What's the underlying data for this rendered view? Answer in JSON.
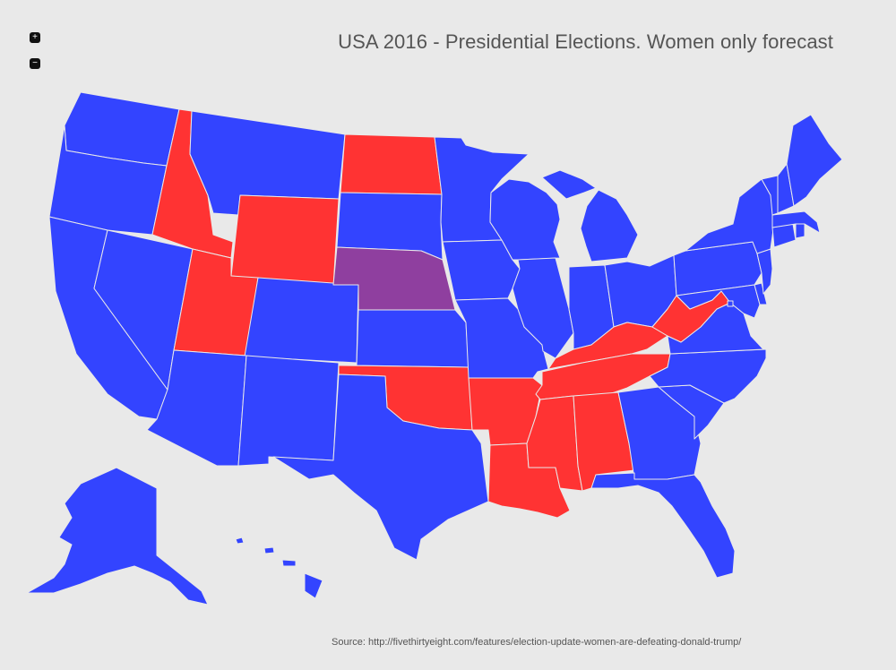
{
  "title": "USA 2016 - Presidential Elections. Women only forecast",
  "source": "Source: http://fivethirtyeight.com/features/election-update-women-are-defeating-donald-trump/",
  "zoom": {
    "in_label": "+",
    "out_label": "−"
  },
  "colors": {
    "dem": "#3344ff",
    "rep": "#ff3333",
    "tossup": "#8f3f9f",
    "background": "#e9e9e9",
    "border": "#e9e9e9"
  },
  "states": {
    "WA": "dem",
    "OR": "dem",
    "CA": "dem",
    "NV": "dem",
    "ID": "rep",
    "MT": "dem",
    "WY": "rep",
    "UT": "rep",
    "CO": "dem",
    "AZ": "dem",
    "NM": "dem",
    "ND": "rep",
    "SD": "dem",
    "NE": "tossup",
    "KS": "dem",
    "OK": "rep",
    "TX": "dem",
    "MN": "dem",
    "IA": "dem",
    "MO": "dem",
    "AR": "rep",
    "LA": "rep",
    "WI": "dem",
    "IL": "dem",
    "MI": "dem",
    "IN": "dem",
    "OH": "dem",
    "KY": "rep",
    "TN": "rep",
    "MS": "rep",
    "AL": "rep",
    "GA": "dem",
    "FL": "dem",
    "SC": "dem",
    "NC": "dem",
    "VA": "dem",
    "WV": "rep",
    "PA": "dem",
    "NY": "dem",
    "NJ": "dem",
    "DE": "dem",
    "MD": "dem",
    "DC": "dem",
    "CT": "dem",
    "RI": "dem",
    "MA": "dem",
    "VT": "dem",
    "NH": "dem",
    "ME": "dem",
    "AK": "dem",
    "HI": "dem"
  }
}
